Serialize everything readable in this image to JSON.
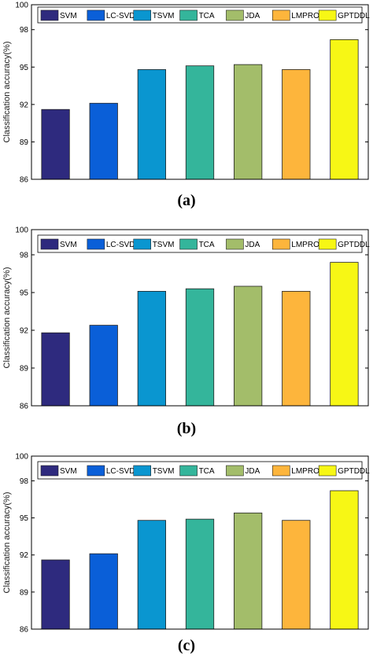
{
  "chart_data": [
    {
      "type": "bar",
      "caption": "(a)",
      "ylabel": "Classification accuracy(%)",
      "ylim": [
        86,
        100
      ],
      "yticks": [
        "86",
        "89",
        "92",
        "95",
        "98",
        "100"
      ],
      "categories": [
        "SVM",
        "LC-SVD",
        "TSVM",
        "TCA",
        "JDA",
        "LMPROJ",
        "GPTDDL"
      ],
      "values": [
        91.6,
        92.1,
        94.8,
        95.1,
        95.2,
        94.8,
        97.2
      ],
      "colors": [
        "#2e2a7e",
        "#0a5fd8",
        "#0a96d0",
        "#34b59b",
        "#a3bd6a",
        "#fdb53c",
        "#f7f715"
      ],
      "legend_position": "top",
      "grid": false
    },
    {
      "type": "bar",
      "caption": "(b)",
      "ylabel": "Classification accuracy(%)",
      "ylim": [
        86,
        100
      ],
      "yticks": [
        "86",
        "89",
        "92",
        "95",
        "98",
        "100"
      ],
      "categories": [
        "SVM",
        "LC-SVD",
        "TSVM",
        "TCA",
        "JDA",
        "LMPROJ",
        "GPTDDL"
      ],
      "values": [
        91.8,
        92.4,
        95.1,
        95.3,
        95.5,
        95.1,
        97.4
      ],
      "colors": [
        "#2e2a7e",
        "#0a5fd8",
        "#0a96d0",
        "#34b59b",
        "#a3bd6a",
        "#fdb53c",
        "#f7f715"
      ],
      "legend_position": "top",
      "grid": false
    },
    {
      "type": "bar",
      "caption": "(c)",
      "ylabel": "Classification accuracy(%)",
      "ylim": [
        86,
        100
      ],
      "yticks": [
        "86",
        "89",
        "92",
        "95",
        "98",
        "100"
      ],
      "categories": [
        "SVM",
        "LC-SVD",
        "TSVM",
        "TCA",
        "JDA",
        "LMPROJ",
        "GPTDDL"
      ],
      "values": [
        91.6,
        92.1,
        94.8,
        94.9,
        95.4,
        94.8,
        97.2
      ],
      "colors": [
        "#2e2a7e",
        "#0a5fd8",
        "#0a96d0",
        "#34b59b",
        "#a3bd6a",
        "#fdb53c",
        "#f7f715"
      ],
      "legend_position": "top",
      "grid": false
    }
  ]
}
